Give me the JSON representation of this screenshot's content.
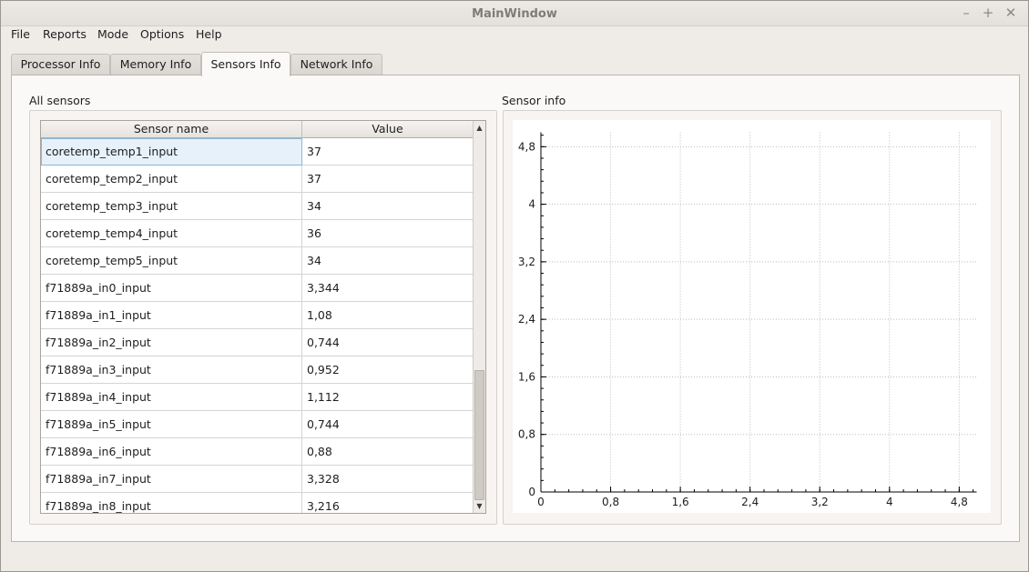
{
  "window": {
    "title": "MainWindow"
  },
  "window_controls": {
    "minimize": "–",
    "maximize": "+",
    "close": "✕"
  },
  "menu": [
    "File",
    "Reports",
    "Mode",
    "Options",
    "Help"
  ],
  "tabs": [
    "Processor Info",
    "Memory Info",
    "Sensors Info",
    "Network Info"
  ],
  "active_tab": "Sensors Info",
  "all_sensors": {
    "title": "All sensors",
    "columns": [
      "Sensor name",
      "Value"
    ],
    "rows": [
      [
        "coretemp_temp1_input",
        "37"
      ],
      [
        "coretemp_temp2_input",
        "37"
      ],
      [
        "coretemp_temp3_input",
        "34"
      ],
      [
        "coretemp_temp4_input",
        "36"
      ],
      [
        "coretemp_temp5_input",
        "34"
      ],
      [
        "f71889a_in0_input",
        "3,344"
      ],
      [
        "f71889a_in1_input",
        "1,08"
      ],
      [
        "f71889a_in2_input",
        "0,744"
      ],
      [
        "f71889a_in3_input",
        "0,952"
      ],
      [
        "f71889a_in4_input",
        "1,112"
      ],
      [
        "f71889a_in5_input",
        "0,744"
      ],
      [
        "f71889a_in6_input",
        "0,88"
      ],
      [
        "f71889a_in7_input",
        "3,328"
      ],
      [
        "f71889a_in8_input",
        "3,216"
      ]
    ],
    "scroll": {
      "up_arrow": "▲",
      "down_arrow": "▼"
    }
  },
  "sensor_info": {
    "title": "Sensor info"
  },
  "chart_data": {
    "type": "line",
    "title": "",
    "xlabel": "",
    "ylabel": "",
    "xlim": [
      0,
      5.0
    ],
    "ylim": [
      0,
      5.0
    ],
    "x_ticks": [
      "0",
      "0,8",
      "1,6",
      "2,4",
      "3,2",
      "4",
      "4,8"
    ],
    "y_ticks": [
      "0",
      "0,8",
      "1,6",
      "2,4",
      "3,2",
      "4",
      "4,8"
    ],
    "grid": true,
    "series": []
  }
}
